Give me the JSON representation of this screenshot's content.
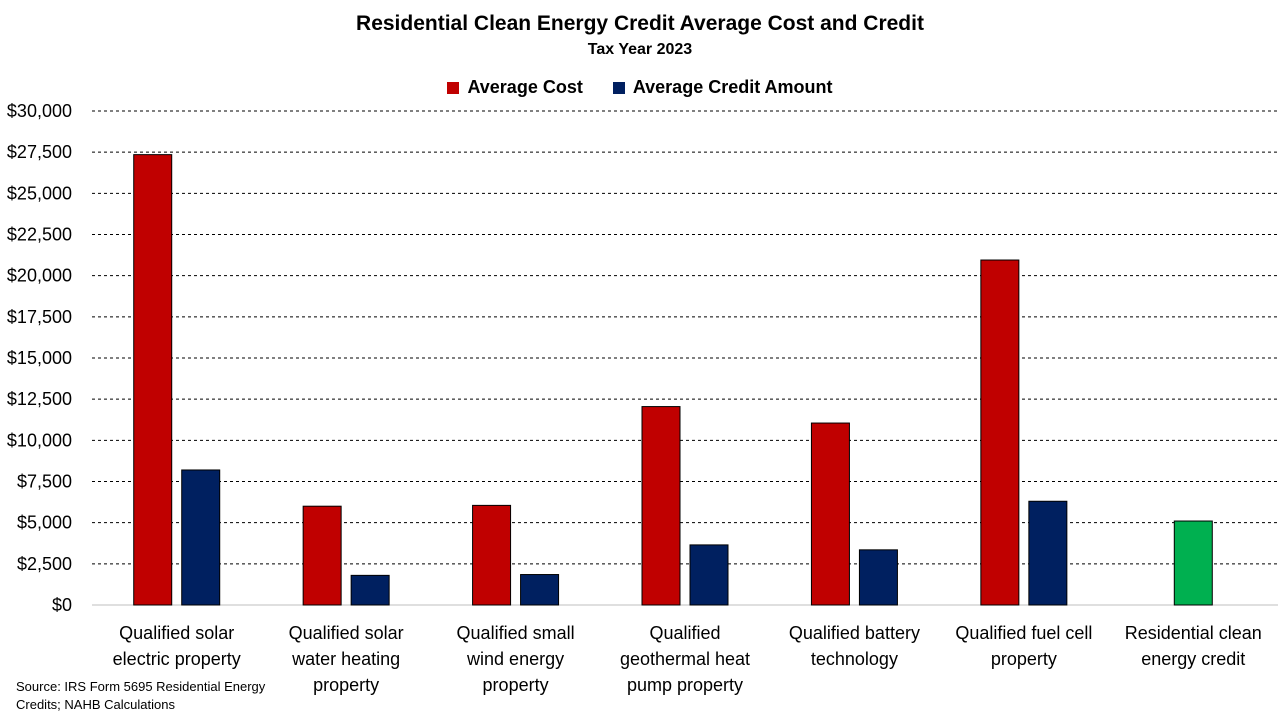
{
  "chart_data": {
    "type": "bar",
    "title": "Residential Clean Energy Credit Average Cost and Credit",
    "subtitle": "Tax Year 2023",
    "categories": [
      [
        "Qualified solar",
        "electric property"
      ],
      [
        "Qualified solar",
        "water heating",
        "property"
      ],
      [
        "Qualified small",
        "wind energy",
        "property"
      ],
      [
        "Qualified",
        "geothermal heat",
        "pump property"
      ],
      [
        "Qualified battery",
        "technology"
      ],
      [
        "Qualified fuel cell",
        "property"
      ],
      [
        "Residential clean",
        "energy credit"
      ]
    ],
    "series": [
      {
        "name": "Average Cost",
        "color": "#c00000",
        "values": [
          27350,
          6000,
          6050,
          12050,
          11050,
          20950,
          null
        ]
      },
      {
        "name": "Average Credit Amount",
        "color": "#002060",
        "values": [
          8200,
          1800,
          1850,
          3650,
          3350,
          6300,
          null
        ]
      },
      {
        "values": [
          null,
          null,
          null,
          null,
          null,
          null,
          5100
        ],
        "color": "#00b050"
      }
    ],
    "y_ticks": [
      "$0",
      "$2,500",
      "$5,000",
      "$7,500",
      "$10,000",
      "$12,500",
      "$15,000",
      "$17,500",
      "$20,000",
      "$22,500",
      "$25,000",
      "$27,500",
      "$30,000"
    ],
    "ylim": [
      0,
      30000
    ],
    "y_step": 2500,
    "grid": "dashed-horizontal",
    "legend_position": "top-center",
    "source": "Source: IRS Form 5695  Residential Energy Credits; NAHB Calculations"
  }
}
